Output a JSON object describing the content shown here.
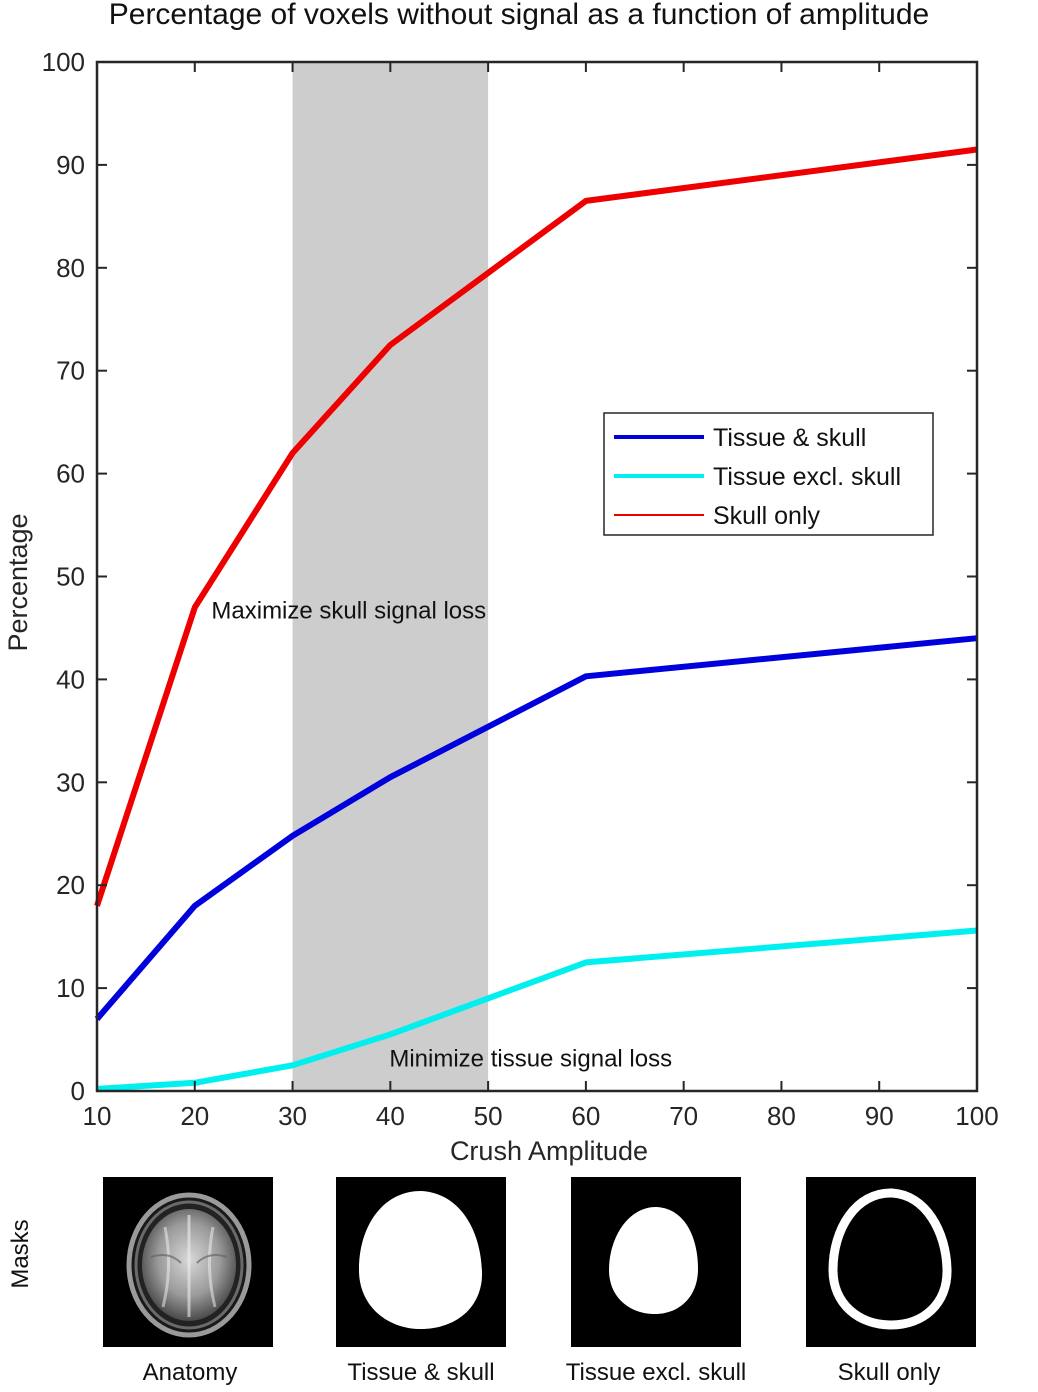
{
  "title": "Percentage of voxels without signal as a function of amplitude",
  "chart_data": {
    "type": "line",
    "title": "Percentage of voxels without signal as a function of amplitude",
    "xlabel": "Crush Amplitude",
    "ylabel": "Percentage",
    "xlim": [
      10,
      100
    ],
    "ylim": [
      0,
      100
    ],
    "xticks": [
      10,
      20,
      30,
      40,
      50,
      60,
      70,
      80,
      90,
      100
    ],
    "yticks": [
      0,
      10,
      20,
      30,
      40,
      50,
      60,
      70,
      80,
      90,
      100
    ],
    "grid": false,
    "legend_position": "upper-right",
    "x": [
      10,
      20,
      30,
      40,
      60,
      100
    ],
    "series": [
      {
        "name": "Tissue & skull",
        "color": "#0000dd",
        "values": [
          7,
          18,
          24.8,
          30.5,
          40.3,
          44
        ]
      },
      {
        "name": "Tissue excl. skull",
        "color": "#00f0f0",
        "values": [
          0.2,
          0.8,
          2.5,
          5.5,
          12.5,
          15.6
        ]
      },
      {
        "name": "Skull only",
        "color": "#ee0000",
        "values": [
          18,
          47,
          62,
          72.5,
          86.5,
          91.5
        ]
      }
    ],
    "shaded_region": {
      "x": [
        30,
        50
      ],
      "color": "#c8c8c8"
    },
    "annotations": [
      {
        "text": "Maximize skull signal loss",
        "x": 21.7,
        "y": 45.9
      },
      {
        "text": "Minimize tissue signal loss",
        "x": 39.9,
        "y": 2.4
      }
    ]
  },
  "masks": {
    "row_label": "Masks",
    "items": [
      {
        "label": "Anatomy",
        "icon": "brain-anatomy-scan-icon"
      },
      {
        "label": "Tissue & skull",
        "icon": "tissue-and-skull-mask-icon"
      },
      {
        "label": "Tissue excl. skull",
        "icon": "tissue-excl-skull-mask-icon"
      },
      {
        "label": "Skull only",
        "icon": "skull-only-mask-icon"
      }
    ]
  }
}
